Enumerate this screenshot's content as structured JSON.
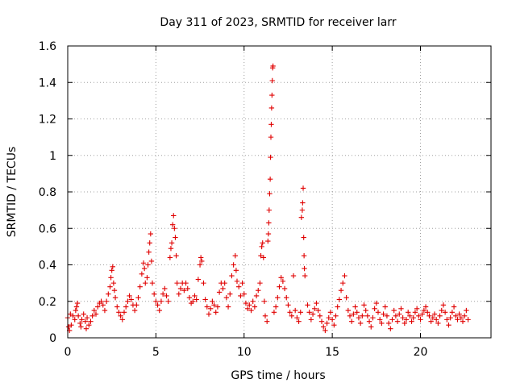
{
  "chart_data": {
    "type": "scatter",
    "title": "Day 311 of 2023, SRMTID for receiver larr",
    "xlabel": "GPS time / hours",
    "ylabel": "SRMTID / TECUs",
    "xlim": [
      0,
      24
    ],
    "ylim": [
      0,
      1.6
    ],
    "xticks": [
      0,
      5,
      10,
      15,
      20
    ],
    "yticks": [
      0,
      0.2,
      0.4,
      0.6,
      0.8,
      1,
      1.2,
      1.4,
      1.6
    ],
    "ytick_labels": [
      "0",
      "0.2",
      "0.4",
      "0.6",
      "0.8",
      "1",
      "1.2",
      "1.4",
      "1.6"
    ],
    "grid": true,
    "marker": "+",
    "color": "#e00000",
    "series": [
      {
        "name": "SRMTID",
        "points": [
          [
            0.0,
            0.11
          ],
          [
            0.05,
            0.06
          ],
          [
            0.1,
            0.04
          ],
          [
            0.15,
            0.13
          ],
          [
            0.2,
            0.07
          ],
          [
            0.3,
            0.12
          ],
          [
            0.4,
            0.1
          ],
          [
            0.45,
            0.15
          ],
          [
            0.5,
            0.17
          ],
          [
            0.55,
            0.19
          ],
          [
            0.6,
            0.12
          ],
          [
            0.7,
            0.08
          ],
          [
            0.75,
            0.06
          ],
          [
            0.8,
            0.1
          ],
          [
            0.9,
            0.13
          ],
          [
            1.0,
            0.09
          ],
          [
            1.05,
            0.05
          ],
          [
            1.1,
            0.11
          ],
          [
            1.2,
            0.07
          ],
          [
            1.3,
            0.09
          ],
          [
            1.4,
            0.12
          ],
          [
            1.5,
            0.15
          ],
          [
            1.6,
            0.13
          ],
          [
            1.7,
            0.17
          ],
          [
            1.8,
            0.19
          ],
          [
            1.9,
            0.2
          ],
          [
            2.0,
            0.18
          ],
          [
            2.1,
            0.15
          ],
          [
            2.2,
            0.2
          ],
          [
            2.3,
            0.24
          ],
          [
            2.4,
            0.28
          ],
          [
            2.45,
            0.33
          ],
          [
            2.5,
            0.37
          ],
          [
            2.55,
            0.39
          ],
          [
            2.6,
            0.3
          ],
          [
            2.65,
            0.26
          ],
          [
            2.7,
            0.22
          ],
          [
            2.8,
            0.17
          ],
          [
            2.9,
            0.14
          ],
          [
            3.0,
            0.12
          ],
          [
            3.1,
            0.1
          ],
          [
            3.2,
            0.14
          ],
          [
            3.3,
            0.17
          ],
          [
            3.4,
            0.2
          ],
          [
            3.5,
            0.23
          ],
          [
            3.6,
            0.21
          ],
          [
            3.7,
            0.18
          ],
          [
            3.8,
            0.15
          ],
          [
            3.9,
            0.18
          ],
          [
            4.0,
            0.22
          ],
          [
            4.1,
            0.28
          ],
          [
            4.2,
            0.35
          ],
          [
            4.3,
            0.41
          ],
          [
            4.35,
            0.38
          ],
          [
            4.4,
            0.3
          ],
          [
            4.5,
            0.33
          ],
          [
            4.55,
            0.4
          ],
          [
            4.6,
            0.47
          ],
          [
            4.65,
            0.52
          ],
          [
            4.7,
            0.57
          ],
          [
            4.75,
            0.42
          ],
          [
            4.8,
            0.3
          ],
          [
            4.9,
            0.24
          ],
          [
            5.0,
            0.2
          ],
          [
            5.1,
            0.18
          ],
          [
            5.2,
            0.15
          ],
          [
            5.3,
            0.2
          ],
          [
            5.4,
            0.24
          ],
          [
            5.5,
            0.27
          ],
          [
            5.6,
            0.23
          ],
          [
            5.7,
            0.2
          ],
          [
            5.8,
            0.44
          ],
          [
            5.85,
            0.49
          ],
          [
            5.9,
            0.52
          ],
          [
            5.95,
            0.62
          ],
          [
            6.0,
            0.67
          ],
          [
            6.05,
            0.6
          ],
          [
            6.1,
            0.55
          ],
          [
            6.15,
            0.45
          ],
          [
            6.2,
            0.3
          ],
          [
            6.3,
            0.24
          ],
          [
            6.4,
            0.27
          ],
          [
            6.5,
            0.3
          ],
          [
            6.6,
            0.26
          ],
          [
            6.7,
            0.3
          ],
          [
            6.8,
            0.27
          ],
          [
            6.9,
            0.22
          ],
          [
            7.0,
            0.19
          ],
          [
            7.1,
            0.2
          ],
          [
            7.2,
            0.23
          ],
          [
            7.3,
            0.21
          ],
          [
            7.4,
            0.32
          ],
          [
            7.5,
            0.4
          ],
          [
            7.55,
            0.44
          ],
          [
            7.6,
            0.42
          ],
          [
            7.7,
            0.3
          ],
          [
            7.8,
            0.21
          ],
          [
            7.9,
            0.17
          ],
          [
            8.0,
            0.13
          ],
          [
            8.1,
            0.16
          ],
          [
            8.2,
            0.2
          ],
          [
            8.3,
            0.18
          ],
          [
            8.4,
            0.14
          ],
          [
            8.5,
            0.17
          ],
          [
            8.6,
            0.25
          ],
          [
            8.7,
            0.3
          ],
          [
            8.8,
            0.27
          ],
          [
            8.9,
            0.3
          ],
          [
            9.0,
            0.22
          ],
          [
            9.1,
            0.17
          ],
          [
            9.2,
            0.24
          ],
          [
            9.3,
            0.34
          ],
          [
            9.4,
            0.4
          ],
          [
            9.5,
            0.45
          ],
          [
            9.55,
            0.37
          ],
          [
            9.6,
            0.31
          ],
          [
            9.7,
            0.28
          ],
          [
            9.8,
            0.23
          ],
          [
            9.9,
            0.3
          ],
          [
            10.0,
            0.24
          ],
          [
            10.1,
            0.19
          ],
          [
            10.2,
            0.16
          ],
          [
            10.3,
            0.18
          ],
          [
            10.4,
            0.15
          ],
          [
            10.5,
            0.2
          ],
          [
            10.6,
            0.17
          ],
          [
            10.7,
            0.23
          ],
          [
            10.8,
            0.26
          ],
          [
            10.9,
            0.3
          ],
          [
            10.95,
            0.45
          ],
          [
            11.0,
            0.5
          ],
          [
            11.05,
            0.52
          ],
          [
            11.1,
            0.44
          ],
          [
            11.15,
            0.2
          ],
          [
            11.2,
            0.12
          ],
          [
            11.3,
            0.09
          ],
          [
            11.35,
            0.53
          ],
          [
            11.38,
            0.57
          ],
          [
            11.4,
            0.63
          ],
          [
            11.42,
            0.7
          ],
          [
            11.45,
            0.79
          ],
          [
            11.48,
            0.87
          ],
          [
            11.5,
            0.99
          ],
          [
            11.52,
            1.1
          ],
          [
            11.54,
            1.17
          ],
          [
            11.56,
            1.26
          ],
          [
            11.58,
            1.33
          ],
          [
            11.6,
            1.41
          ],
          [
            11.62,
            1.48
          ],
          [
            11.64,
            1.49
          ],
          [
            11.7,
            0.14
          ],
          [
            11.8,
            0.17
          ],
          [
            11.9,
            0.22
          ],
          [
            12.0,
            0.28
          ],
          [
            12.1,
            0.33
          ],
          [
            12.2,
            0.31
          ],
          [
            12.3,
            0.27
          ],
          [
            12.4,
            0.22
          ],
          [
            12.5,
            0.18
          ],
          [
            12.6,
            0.14
          ],
          [
            12.7,
            0.12
          ],
          [
            12.8,
            0.34
          ],
          [
            12.9,
            0.15
          ],
          [
            13.0,
            0.11
          ],
          [
            13.1,
            0.09
          ],
          [
            13.2,
            0.14
          ],
          [
            13.25,
            0.66
          ],
          [
            13.3,
            0.7
          ],
          [
            13.32,
            0.74
          ],
          [
            13.35,
            0.82
          ],
          [
            13.38,
            0.55
          ],
          [
            13.4,
            0.45
          ],
          [
            13.42,
            0.38
          ],
          [
            13.45,
            0.34
          ],
          [
            13.6,
            0.18
          ],
          [
            13.7,
            0.14
          ],
          [
            13.8,
            0.1
          ],
          [
            13.9,
            0.13
          ],
          [
            14.0,
            0.16
          ],
          [
            14.1,
            0.19
          ],
          [
            14.2,
            0.15
          ],
          [
            14.3,
            0.12
          ],
          [
            14.4,
            0.09
          ],
          [
            14.5,
            0.06
          ],
          [
            14.6,
            0.04
          ],
          [
            14.7,
            0.08
          ],
          [
            14.8,
            0.11
          ],
          [
            14.9,
            0.14
          ],
          [
            15.0,
            0.1
          ],
          [
            15.1,
            0.07
          ],
          [
            15.2,
            0.12
          ],
          [
            15.3,
            0.17
          ],
          [
            15.4,
            0.21
          ],
          [
            15.5,
            0.26
          ],
          [
            15.6,
            0.3
          ],
          [
            15.7,
            0.34
          ],
          [
            15.8,
            0.22
          ],
          [
            15.9,
            0.15
          ],
          [
            16.0,
            0.12
          ],
          [
            16.1,
            0.09
          ],
          [
            16.2,
            0.13
          ],
          [
            16.3,
            0.17
          ],
          [
            16.4,
            0.14
          ],
          [
            16.5,
            0.11
          ],
          [
            16.6,
            0.08
          ],
          [
            16.7,
            0.12
          ],
          [
            16.8,
            0.18
          ],
          [
            16.9,
            0.15
          ],
          [
            17.0,
            0.12
          ],
          [
            17.1,
            0.09
          ],
          [
            17.2,
            0.06
          ],
          [
            17.3,
            0.11
          ],
          [
            17.4,
            0.16
          ],
          [
            17.5,
            0.19
          ],
          [
            17.6,
            0.14
          ],
          [
            17.7,
            0.1
          ],
          [
            17.8,
            0.08
          ],
          [
            17.9,
            0.13
          ],
          [
            18.0,
            0.17
          ],
          [
            18.1,
            0.12
          ],
          [
            18.2,
            0.08
          ],
          [
            18.3,
            0.05
          ],
          [
            18.4,
            0.1
          ],
          [
            18.5,
            0.15
          ],
          [
            18.6,
            0.12
          ],
          [
            18.7,
            0.09
          ],
          [
            18.8,
            0.13
          ],
          [
            18.9,
            0.16
          ],
          [
            19.0,
            0.11
          ],
          [
            19.1,
            0.08
          ],
          [
            19.2,
            0.1
          ],
          [
            19.3,
            0.14
          ],
          [
            19.4,
            0.12
          ],
          [
            19.5,
            0.09
          ],
          [
            19.6,
            0.11
          ],
          [
            19.7,
            0.14
          ],
          [
            19.8,
            0.16
          ],
          [
            19.9,
            0.12
          ],
          [
            20.0,
            0.1
          ],
          [
            20.1,
            0.13
          ],
          [
            20.2,
            0.15
          ],
          [
            20.3,
            0.17
          ],
          [
            20.4,
            0.14
          ],
          [
            20.5,
            0.12
          ],
          [
            20.6,
            0.09
          ],
          [
            20.7,
            0.11
          ],
          [
            20.8,
            0.13
          ],
          [
            20.9,
            0.1
          ],
          [
            21.0,
            0.08
          ],
          [
            21.1,
            0.12
          ],
          [
            21.2,
            0.15
          ],
          [
            21.3,
            0.18
          ],
          [
            21.4,
            0.14
          ],
          [
            21.5,
            0.1
          ],
          [
            21.6,
            0.07
          ],
          [
            21.7,
            0.11
          ],
          [
            21.8,
            0.14
          ],
          [
            21.9,
            0.17
          ],
          [
            22.0,
            0.12
          ],
          [
            22.1,
            0.1
          ],
          [
            22.2,
            0.13
          ],
          [
            22.3,
            0.11
          ],
          [
            22.4,
            0.09
          ],
          [
            22.5,
            0.12
          ],
          [
            22.6,
            0.15
          ],
          [
            22.7,
            0.1
          ]
        ]
      }
    ]
  }
}
